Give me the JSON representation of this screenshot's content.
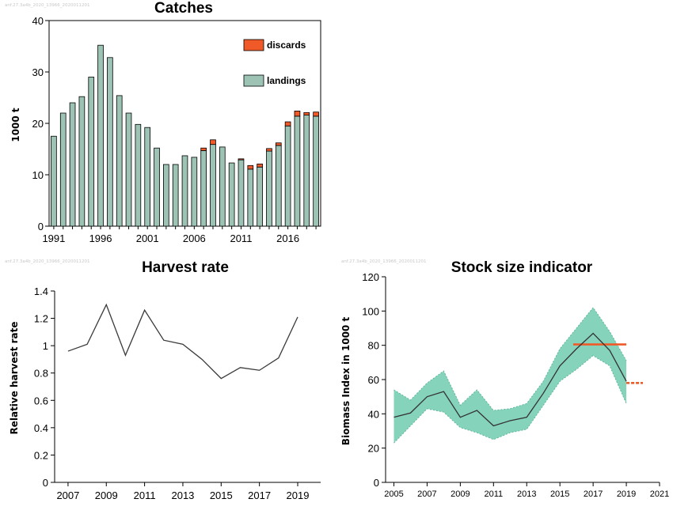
{
  "watermark": "anf.27.3a4b_2020_13966_2020011201",
  "chart_data": [
    {
      "type": "bar",
      "title": "Catches",
      "xlabel": "",
      "ylabel": "1000 t",
      "ylim": [
        0,
        40
      ],
      "yticks": [
        0,
        10,
        20,
        30,
        40
      ],
      "xtick_labels": [
        "1991",
        "1996",
        "2001",
        "2006",
        "2011",
        "2016"
      ],
      "categories": [
        "1991",
        "1992",
        "1993",
        "1994",
        "1995",
        "1996",
        "1997",
        "1998",
        "1999",
        "2000",
        "2001",
        "2002",
        "2003",
        "2004",
        "2005",
        "2006",
        "2007",
        "2008",
        "2009",
        "2010",
        "2011",
        "2012",
        "2013",
        "2014",
        "2015",
        "2016",
        "2017",
        "2018",
        "2019"
      ],
      "series": [
        {
          "name": "landings",
          "color": "#9dc3b4",
          "values": [
            17.5,
            22.0,
            24.0,
            25.2,
            29.0,
            35.2,
            32.8,
            25.4,
            22.0,
            19.8,
            19.2,
            15.2,
            12.0,
            12.0,
            13.7,
            13.4,
            14.7,
            15.9,
            15.4,
            12.3,
            12.9,
            11.1,
            11.5,
            14.6,
            15.7,
            19.5,
            21.4,
            21.6,
            21.4
          ]
        },
        {
          "name": "discards",
          "color": "#f05a28",
          "values": [
            0,
            0,
            0,
            0,
            0,
            0,
            0,
            0,
            0,
            0,
            0,
            0,
            0,
            0,
            0,
            0,
            0.5,
            0.9,
            0,
            0,
            0.2,
            0.7,
            0.6,
            0.5,
            0.5,
            0.8,
            1.0,
            0.5,
            0.8
          ]
        }
      ],
      "legend": [
        "discards",
        "landings"
      ],
      "legend_position": "top-right",
      "grid": false
    },
    {
      "type": "line",
      "title": "Harvest rate",
      "xlabel": "",
      "ylabel": "Relative harvest rate",
      "ylim": [
        0,
        1.4
      ],
      "yticks": [
        "0",
        "0.2",
        "0.4",
        "0.6",
        "0.8",
        "1",
        "1.2",
        "1.4"
      ],
      "xtick_labels": [
        "2007",
        "2009",
        "2011",
        "2013",
        "2015",
        "2017",
        "2019"
      ],
      "x": [
        2007,
        2008,
        2009,
        2010,
        2011,
        2012,
        2013,
        2014,
        2015,
        2016,
        2017,
        2018,
        2019
      ],
      "series": [
        {
          "color": "#3a3a3a",
          "values": [
            0.96,
            1.01,
            1.3,
            0.93,
            1.26,
            1.04,
            1.01,
            0.9,
            0.76,
            0.84,
            0.82,
            0.91,
            1.21
          ]
        }
      ],
      "grid": false
    },
    {
      "type": "area",
      "title": "Stock size indicator",
      "xlabel": "",
      "ylabel": "Biomass Index in 1000 t",
      "ylim": [
        0,
        120
      ],
      "xlim": [
        2004.5,
        2021
      ],
      "yticks": [
        0,
        20,
        40,
        60,
        80,
        100,
        120
      ],
      "xtick_labels": [
        "2005",
        "2007",
        "2009",
        "2011",
        "2013",
        "2015",
        "2017",
        "2019",
        "2021"
      ],
      "x": [
        2005,
        2006,
        2007,
        2008,
        2009,
        2010,
        2011,
        2012,
        2013,
        2014,
        2015,
        2016,
        2017,
        2018,
        2019
      ],
      "index": [
        38,
        40.5,
        50,
        53,
        38,
        42,
        33,
        36,
        38,
        52,
        68,
        78,
        87,
        77,
        59
      ],
      "lower": [
        23,
        33,
        43,
        41,
        32,
        29,
        25,
        29,
        31,
        45,
        59,
        66,
        74,
        68,
        46
      ],
      "upper": [
        54,
        48,
        58,
        65,
        45,
        54,
        42,
        43,
        46,
        59,
        78,
        90,
        102,
        88,
        71
      ],
      "band_color": "#86d3bb",
      "line_color": "#333333",
      "reference_lines": [
        {
          "x_from": 2015.8,
          "x_to": 2019.0,
          "y": 80.5,
          "style": "solid",
          "color": "#f05a28"
        },
        {
          "x_from": 2019.0,
          "x_to": 2020.0,
          "y": 58,
          "style": "dashed",
          "color": "#f05a28"
        }
      ],
      "grid": false
    }
  ]
}
